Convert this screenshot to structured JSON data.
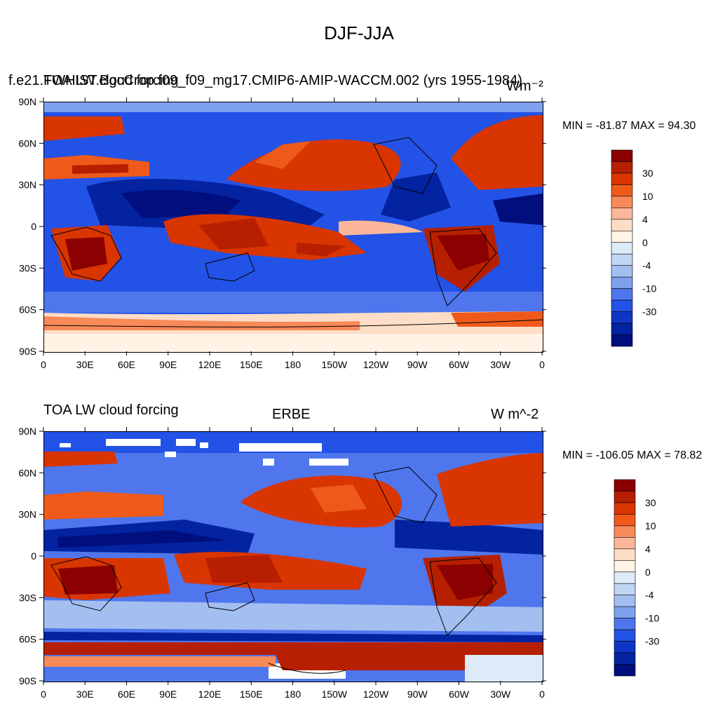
{
  "title": "DJF-JJA",
  "colorbar": {
    "colors": [
      "#8b0000",
      "#b62000",
      "#d93500",
      "#ef5a1a",
      "#f88a5a",
      "#fcb79a",
      "#feddc6",
      "#fff3e6",
      "#ddeaf8",
      "#c1d5f4",
      "#a3bff0",
      "#7ea1ee",
      "#4f76ec",
      "#2352e6",
      "#0f35c6",
      "#0323a0",
      "#000e7e"
    ],
    "tick_labels": [
      "30",
      "10",
      "4",
      "0",
      "-4",
      "-10",
      "-30"
    ]
  },
  "axes": {
    "lat_labels": [
      "90N",
      "60N",
      "30N",
      "0",
      "30S",
      "60S",
      "90S"
    ],
    "lon_labels": [
      "0",
      "30E",
      "60E",
      "90E",
      "120E",
      "150E",
      "180",
      "150W",
      "120W",
      "90W",
      "60W",
      "30W",
      "0"
    ]
  },
  "panels": [
    {
      "left_label": "f.e21.FWHIST.BgcCrop.f09_f09_mg17.CMIP6-AMIP-WACCM.002 (yrs 1955-1984)",
      "overlap_label": "TOA LW cloud forcing",
      "right_label": "Wm⁻²",
      "center_label": "",
      "stats": "MIN = -81.87 MAX =  94.30"
    },
    {
      "left_label": "TOA LW cloud forcing",
      "overlap_label": "",
      "right_label": "W m^-2",
      "center_label": "ERBE",
      "stats": "MIN = -106.05 MAX =  78.82"
    }
  ]
}
